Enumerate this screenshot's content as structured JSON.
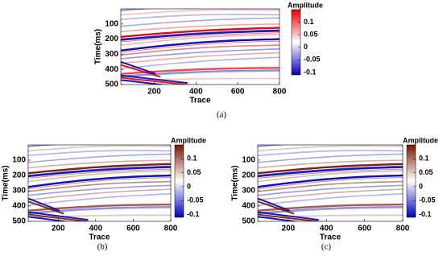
{
  "panels": [
    {
      "caption": "(a)",
      "x_label": "Trace",
      "y_label": "Time(ms)",
      "xlim": [
        40,
        800
      ],
      "xticks": [
        200,
        400,
        600,
        800
      ],
      "ylim": [
        0,
        500
      ],
      "yticks": [
        100,
        200,
        300,
        400,
        500
      ],
      "colorbar_label": "Amplitude",
      "clim": [
        -0.11,
        0.15
      ],
      "cticks": [
        0.1,
        0.05,
        0,
        -0.05,
        -0.1
      ],
      "colormap": [
        "#0000b8",
        "#ffffff",
        "#e00000"
      ]
    },
    {
      "caption": "(b)",
      "x_label": "Trace",
      "y_label": "Time(ms)",
      "xlim": [
        40,
        800
      ],
      "xticks": [
        200,
        400,
        600,
        800
      ],
      "ylim": [
        0,
        500
      ],
      "yticks": [
        100,
        200,
        300,
        400,
        500
      ],
      "colorbar_label": "Amplitude",
      "clim": [
        -0.11,
        0.15
      ],
      "cticks": [
        0.1,
        0.05,
        0,
        -0.05,
        -0.1
      ],
      "colormap": [
        "#0000b8",
        "#ffffff",
        "#7a1500"
      ]
    },
    {
      "caption": "(c)",
      "x_label": "Trace",
      "y_label": "Time(ms)",
      "xlim": [
        40,
        800
      ],
      "xticks": [
        200,
        400,
        600,
        800
      ],
      "ylim": [
        0,
        500
      ],
      "yticks": [
        100,
        200,
        300,
        400,
        500
      ],
      "colorbar_label": "Amplitude",
      "clim": [
        -0.11,
        0.15
      ],
      "cticks": [
        0.1,
        0.05,
        0,
        -0.05,
        -0.1
      ],
      "colormap": [
        "#0000b8",
        "#ffffff",
        "#7a1500"
      ]
    }
  ]
}
